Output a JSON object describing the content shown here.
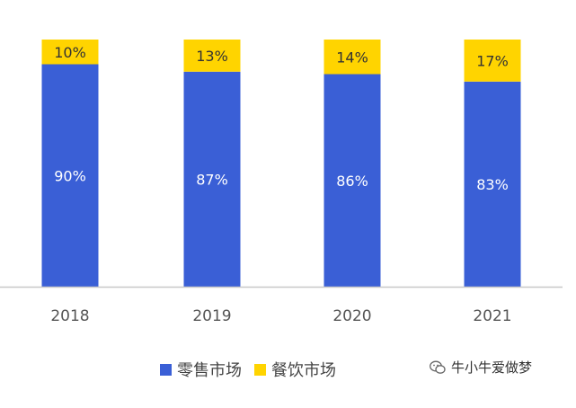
{
  "colors": {
    "retail": "#3a5fd6",
    "catering": "#ffd400",
    "axis": "#c8c8c8"
  },
  "chart_data": {
    "type": "bar",
    "stacked": true,
    "normalized": true,
    "categories": [
      "2018",
      "2019",
      "2020",
      "2021"
    ],
    "series": [
      {
        "name": "零售市场",
        "values": [
          90,
          87,
          86,
          83
        ],
        "labels": [
          "90%",
          "87%",
          "86%",
          "83%"
        ]
      },
      {
        "name": "餐饮市场",
        "values": [
          10,
          13,
          14,
          17
        ],
        "labels": [
          "10%",
          "13%",
          "14%",
          "17%"
        ]
      }
    ],
    "ylim": [
      0,
      100
    ],
    "grid": false,
    "legend_position": "bottom"
  },
  "legend": {
    "retail_label": "零售市场",
    "catering_label": "餐饮市场"
  },
  "watermark": {
    "text": "牛小牛爱做梦",
    "icon": "wechat-icon"
  }
}
